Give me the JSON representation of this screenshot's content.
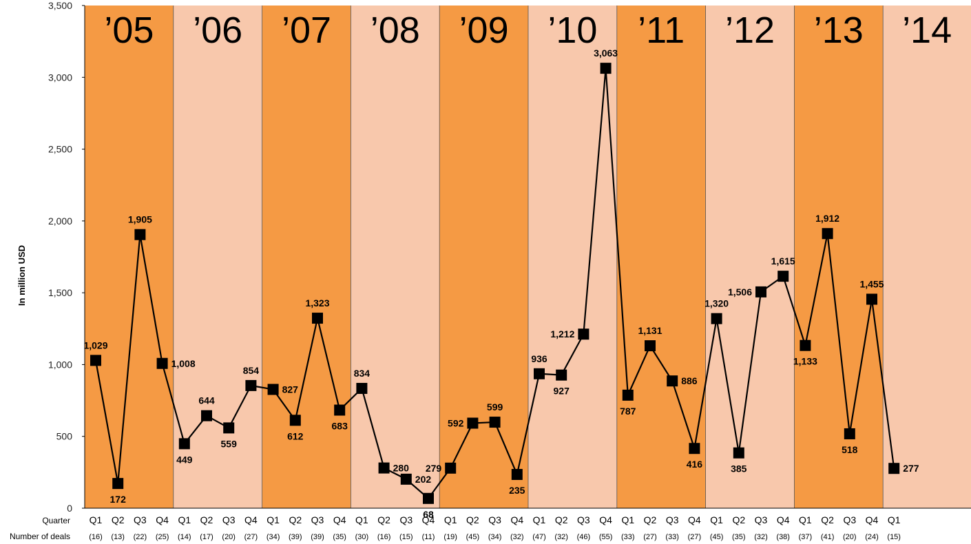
{
  "chart_data": {
    "type": "line",
    "ylabel": "In million USD",
    "ylim": [
      0,
      3500
    ],
    "yticks": [
      0,
      500,
      1000,
      1500,
      2000,
      2500,
      3000,
      3500
    ],
    "ytick_labels": [
      "0",
      "500",
      "1,000",
      "1,500",
      "2,000",
      "2,500",
      "3,000",
      "3,500"
    ],
    "quarter_row_label": "Quarter",
    "deals_row_label": "Number of deals",
    "years": [
      "’05",
      "’06",
      "’07",
      "’08",
      "’09",
      "’10",
      "’11",
      "’12",
      "’13",
      "’14"
    ],
    "year_colors": [
      "#f59a44",
      "#f8c8ac",
      "#f59a44",
      "#f8c8ac",
      "#f59a44",
      "#f8c8ac",
      "#f59a44",
      "#f8c8ac",
      "#f59a44",
      "#f8c8ac"
    ],
    "line_color": "#000000",
    "grid": false,
    "points": [
      {
        "quarter": "Q1",
        "deals": "(16)",
        "value": 1029,
        "label": "1,029"
      },
      {
        "quarter": "Q2",
        "deals": "(13)",
        "value": 172,
        "label": "172"
      },
      {
        "quarter": "Q3",
        "deals": "(22)",
        "value": 1905,
        "label": "1,905"
      },
      {
        "quarter": "Q4",
        "deals": "(25)",
        "value": 1008,
        "label": "1,008"
      },
      {
        "quarter": "Q1",
        "deals": "(14)",
        "value": 449,
        "label": "449"
      },
      {
        "quarter": "Q2",
        "deals": "(17)",
        "value": 644,
        "label": "644"
      },
      {
        "quarter": "Q3",
        "deals": "(20)",
        "value": 559,
        "label": "559"
      },
      {
        "quarter": "Q4",
        "deals": "(27)",
        "value": 854,
        "label": "854"
      },
      {
        "quarter": "Q1",
        "deals": "(34)",
        "value": 827,
        "label": "827"
      },
      {
        "quarter": "Q2",
        "deals": "(39)",
        "value": 612,
        "label": "612"
      },
      {
        "quarter": "Q3",
        "deals": "(39)",
        "value": 1323,
        "label": "1,323"
      },
      {
        "quarter": "Q4",
        "deals": "(35)",
        "value": 683,
        "label": "683"
      },
      {
        "quarter": "Q1",
        "deals": "(30)",
        "value": 834,
        "label": "834"
      },
      {
        "quarter": "Q2",
        "deals": "(16)",
        "value": 280,
        "label": "280"
      },
      {
        "quarter": "Q3",
        "deals": "(15)",
        "value": 202,
        "label": "202"
      },
      {
        "quarter": "Q4",
        "deals": "(11)",
        "value": 68,
        "label": "68"
      },
      {
        "quarter": "Q1",
        "deals": "(19)",
        "value": 279,
        "label": "279"
      },
      {
        "quarter": "Q2",
        "deals": "(45)",
        "value": 592,
        "label": "592"
      },
      {
        "quarter": "Q3",
        "deals": "(34)",
        "value": 599,
        "label": "599"
      },
      {
        "quarter": "Q4",
        "deals": "(32)",
        "value": 235,
        "label": "235"
      },
      {
        "quarter": "Q1",
        "deals": "(47)",
        "value": 936,
        "label": "936"
      },
      {
        "quarter": "Q2",
        "deals": "(32)",
        "value": 927,
        "label": "927"
      },
      {
        "quarter": "Q3",
        "deals": "(46)",
        "value": 1212,
        "label": "1,212"
      },
      {
        "quarter": "Q4",
        "deals": "(55)",
        "value": 3063,
        "label": "3,063"
      },
      {
        "quarter": "Q1",
        "deals": "(33)",
        "value": 787,
        "label": "787"
      },
      {
        "quarter": "Q2",
        "deals": "(27)",
        "value": 1131,
        "label": "1,131"
      },
      {
        "quarter": "Q3",
        "deals": "(33)",
        "value": 886,
        "label": "886"
      },
      {
        "quarter": "Q4",
        "deals": "(27)",
        "value": 416,
        "label": "416"
      },
      {
        "quarter": "Q1",
        "deals": "(45)",
        "value": 1320,
        "label": "1,320"
      },
      {
        "quarter": "Q2",
        "deals": "(35)",
        "value": 385,
        "label": "385"
      },
      {
        "quarter": "Q3",
        "deals": "(32)",
        "value": 1506,
        "label": "1,506"
      },
      {
        "quarter": "Q4",
        "deals": "(38)",
        "value": 1615,
        "label": "1,615"
      },
      {
        "quarter": "Q1",
        "deals": "(37)",
        "value": 1133,
        "label": "1,133"
      },
      {
        "quarter": "Q2",
        "deals": "(41)",
        "value": 1912,
        "label": "1,912"
      },
      {
        "quarter": "Q3",
        "deals": "(20)",
        "value": 518,
        "label": "518"
      },
      {
        "quarter": "Q4",
        "deals": "(24)",
        "value": 1455,
        "label": "1,455"
      },
      {
        "quarter": "Q1",
        "deals": "(15)",
        "value": 277,
        "label": "277"
      }
    ]
  }
}
